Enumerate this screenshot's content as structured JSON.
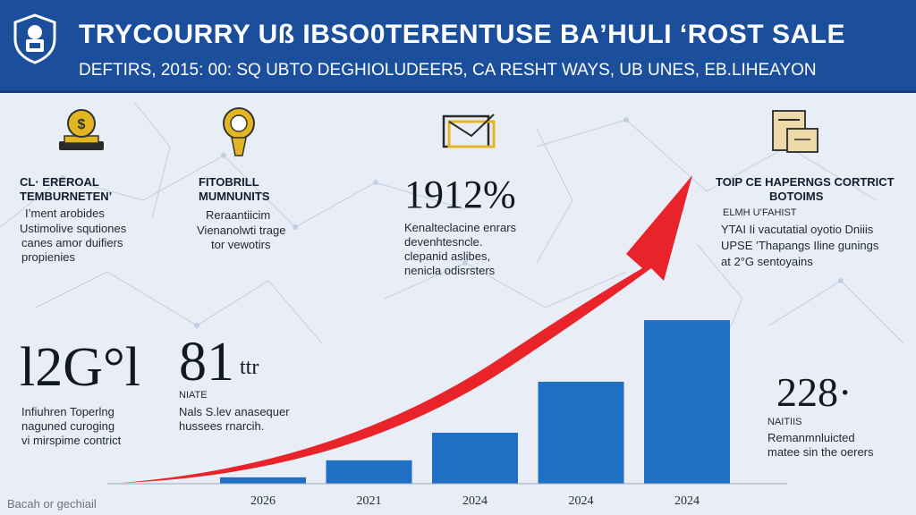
{
  "header": {
    "title": "TRYCOURRY Uß IBSO0TERENTUSE BAʼHULI ʻROST SALE",
    "subtitle": "DEFTIRS, 2015: 00: SQ UBTO DEGHIOLUDEER5, CA RESHT WAYS, UB UNES, EB.LIHEAYON"
  },
  "colors": {
    "header_bg": "#1b4f9c",
    "bar": "#1f6fc4",
    "arrow": "#e8242a",
    "icon_gold": "#e2b623",
    "background": "#e9eef6"
  },
  "icons": [
    "shield-logo-icon",
    "money-coin-icon",
    "lightbulb-icon",
    "envelope-icon",
    "document-tray-icon"
  ],
  "panels": {
    "p1": {
      "heading": [
        "CL· EREROAL",
        "TEMBURNETEN’"
      ],
      "lines": [
        "I’ment arobides",
        "Ustimolive squtiones",
        "canes amor duifiers",
        "propienies"
      ]
    },
    "p2": {
      "heading": [
        "FITOBRILL",
        "MUMNUNITS"
      ],
      "lines": [
        "Reraantiicim",
        "Vienanolwti trage",
        "tor vewotirs"
      ]
    },
    "p3": {
      "value": "1912%",
      "lines": [
        "Kenalteclacine enrars",
        "devenhtesncle.",
        "clepanid aslibes,",
        "nenicla odisrsters"
      ]
    },
    "p4": {
      "heading": [
        "TOIP CE HAPERNGS CORTRICT",
        "BOTOIMS"
      ],
      "lines": [
        "ELMH U’FAHIST",
        "YTAI Ii vacutatial oyotio Dniiis",
        "UPSE ’Thapangs Iline gunings",
        "at 2°G sentoyains"
      ]
    },
    "p5": {
      "value": "l2G°l",
      "lines": [
        "Infiuhren Toperlng",
        "naguned curoging",
        "vi mirspime contrict"
      ]
    },
    "p6": {
      "value": "81",
      "value_suffix": "ttr",
      "label": "NIATE",
      "lines": [
        "Nals S.lev anasequer",
        "hussees rnarcih."
      ]
    },
    "p7": {
      "value": "228·",
      "label": "NAITIIS",
      "lines": [
        "Remanmnluicted",
        "matee sin the oerers"
      ]
    }
  },
  "chart_data": {
    "type": "bar",
    "categories": [
      "2026",
      "2021",
      "2024",
      "2024",
      "2024"
    ],
    "values": [
      6,
      22,
      48,
      96,
      154
    ],
    "ylim": [
      0,
      165
    ],
    "trend_arrow": true,
    "title": "",
    "xlabel": "",
    "ylabel": ""
  },
  "footer": {
    "note": "Bacah  or gechiail"
  }
}
